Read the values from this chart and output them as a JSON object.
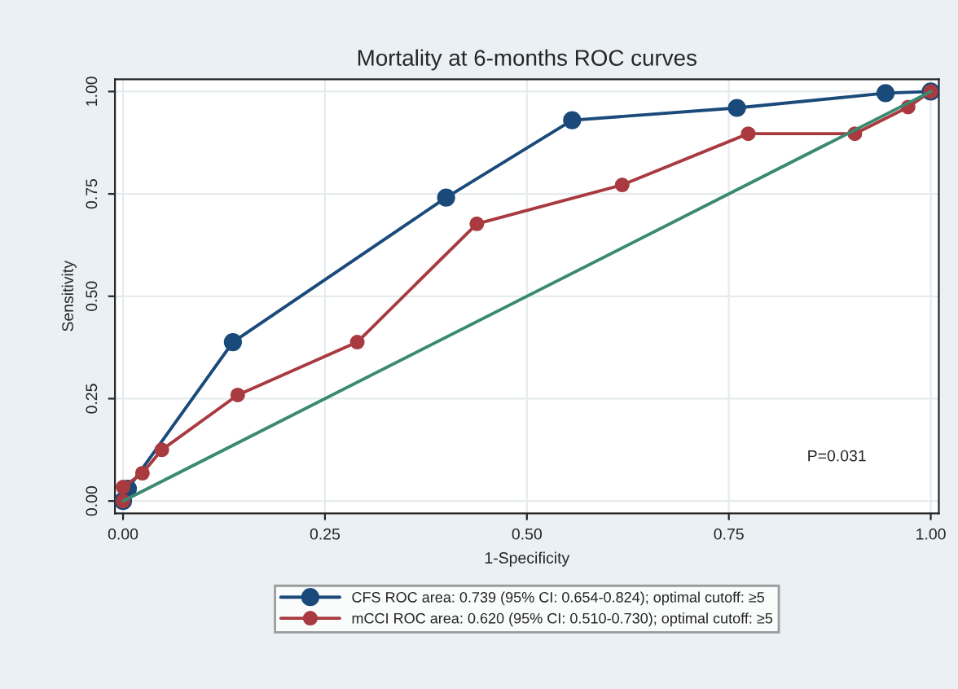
{
  "chart_data": {
    "type": "line",
    "title": "Mortality at 6-months ROC curves",
    "xlabel": "1-Specificity",
    "ylabel": "Sensitivity",
    "series": [
      {
        "name": "CFS ROC area: 0.739 (95% CI: 0.654-0.824); optimal cutoff: ≥5",
        "color": "#1a4a7a",
        "marker": "circle",
        "x": [
          0,
          0.006,
          0.136,
          0.4,
          0.556,
          0.76,
          0.944,
          1.0
        ],
        "values": [
          0,
          0.03,
          0.388,
          0.741,
          0.93,
          0.96,
          0.996,
          1.0
        ]
      },
      {
        "name": "mCCI ROC area: 0.620 (95% CI: 0.510-0.730); optimal cutoff: ≥5",
        "color": "#a83a40",
        "marker": "circle",
        "x": [
          0,
          0,
          0.024,
          0.048,
          0.142,
          0.29,
          0.438,
          0.618,
          0.774,
          0.906,
          0.972,
          1.0
        ],
        "values": [
          0,
          0.034,
          0.068,
          0.125,
          0.259,
          0.388,
          0.677,
          0.772,
          0.897,
          0.897,
          0.962,
          1.0
        ]
      },
      {
        "color": "#3a8a70",
        "marker": "none",
        "x": [
          0,
          1
        ],
        "values": [
          0,
          1
        ]
      }
    ],
    "xlim": [
      0,
      1
    ],
    "ylim": [
      0,
      1
    ],
    "xticks": [
      {
        "value": 0,
        "label": "0.00"
      },
      0.25,
      {
        "value": 0.5,
        "label": "0.50"
      },
      0.75,
      {
        "value": 1,
        "label": "1.00"
      }
    ],
    "yticks": [
      {
        "value": 0,
        "label": "0.00"
      },
      0.25,
      {
        "value": 0.5,
        "label": "0.50"
      },
      0.75,
      {
        "value": 1,
        "label": "1.00"
      }
    ],
    "grid": true,
    "legend": "bottom",
    "annotations": [
      "P=0.031"
    ]
  }
}
